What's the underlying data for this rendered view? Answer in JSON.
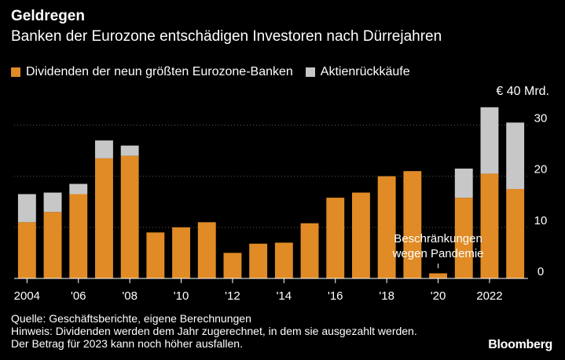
{
  "header": {
    "title": "Geldregen",
    "subtitle": "Banken der Eurozone entschädigen Investoren nach Dürrejahren"
  },
  "unit_label": "€ 40 Mrd.",
  "footnotes": {
    "source": "Quelle: Geschäftsberichte, eigene Berechnungen",
    "note": "Hinweis: Dividenden werden dem Jahr zugerechnet, in dem sie ausgezahlt werden.",
    "note2": "Der Betrag für 2023 kann noch höher ausfallen."
  },
  "brand": "Bloomberg",
  "colors": {
    "dividends": "#e08b25",
    "buybacks": "#c7c7c7",
    "axis": "#ffffff",
    "grid": "#5a5a5a"
  },
  "chart_data": {
    "type": "bar",
    "stacked": true,
    "title": "Geldregen",
    "subtitle": "Banken der Eurozone entschädigen Investoren nach Dürrejahren",
    "categories": [
      "2004",
      "2005",
      "2006",
      "2007",
      "2008",
      "2009",
      "2010",
      "2011",
      "2012",
      "2013",
      "2014",
      "2015",
      "2016",
      "2017",
      "2018",
      "2019",
      "2020",
      "2021",
      "2022",
      "2023"
    ],
    "x_tick_labels": [
      "2004",
      "'06",
      "'08",
      "'10",
      "'12",
      "'14",
      "'16",
      "'18",
      "'20",
      "2022"
    ],
    "x_tick_categories": [
      "2004",
      "2006",
      "2008",
      "2010",
      "2012",
      "2014",
      "2016",
      "2018",
      "2020",
      "2022"
    ],
    "series": [
      {
        "name": "Dividenden der neun größten Eurozone-Banken",
        "values": [
          11.0,
          13.0,
          16.5,
          23.5,
          24.0,
          9.0,
          10.0,
          11.0,
          5.0,
          6.8,
          7.0,
          10.8,
          15.8,
          16.8,
          20.0,
          21.0,
          1.0,
          15.8,
          20.5,
          17.5
        ]
      },
      {
        "name": "Aktienrückkäufe",
        "values": [
          5.5,
          3.8,
          2.0,
          3.5,
          2.0,
          0,
          0,
          0,
          0,
          0,
          0,
          0,
          0,
          0,
          0,
          0,
          0,
          5.7,
          13.0,
          13.0
        ]
      }
    ],
    "ylim": [
      0,
      33
    ],
    "yticks": [
      0,
      10,
      20,
      30
    ],
    "y_axis_position": "right",
    "grid": true,
    "legend_position": "top-left",
    "annotations": [
      {
        "text_line1": "Beschränkungen",
        "text_line2": "wegen Pandemie",
        "category": "2020"
      }
    ]
  }
}
